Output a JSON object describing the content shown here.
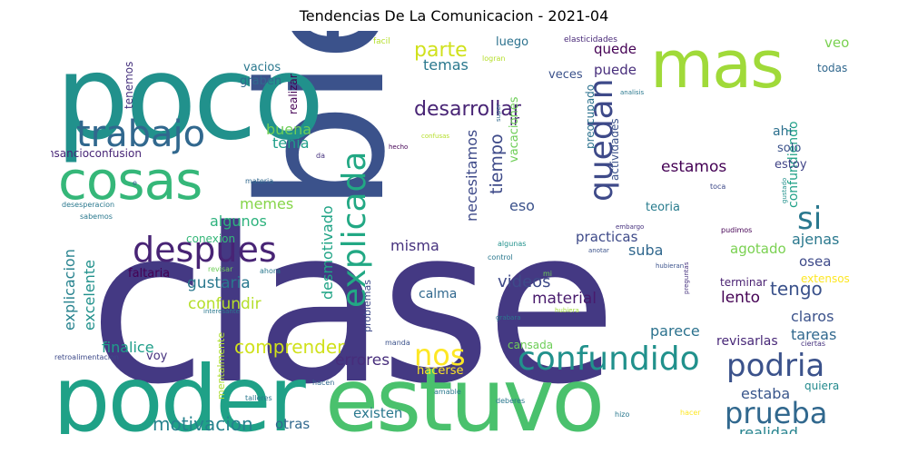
{
  "title": "Tendencias De La Comunicacion - 2021-04",
  "words": [
    {
      "text": "clase",
      "color": "#443983"
    },
    {
      "text": "bien",
      "color": "#3b528b"
    },
    {
      "text": "poco",
      "color": "#21918c"
    },
    {
      "text": "poder",
      "color": "#1fa187"
    },
    {
      "text": "estuvo",
      "color": "#4ac16d"
    },
    {
      "text": "mas",
      "color": "#a0da39"
    },
    {
      "text": "cosas",
      "color": "#35b779"
    },
    {
      "text": "trabajo",
      "color": "#31688e"
    },
    {
      "text": "despues",
      "color": "#482475"
    },
    {
      "text": "explicada",
      "color": "#22a884"
    },
    {
      "text": "si",
      "color": "#2a788e"
    },
    {
      "text": "quedan",
      "color": "#3e4a89"
    },
    {
      "text": "confundido",
      "color": "#21918c"
    },
    {
      "text": "podria",
      "color": "#3b528b"
    },
    {
      "text": "prueba",
      "color": "#31688e"
    },
    {
      "text": "nos",
      "color": "#fde725"
    },
    {
      "text": "parte",
      "color": "#d0e11c"
    },
    {
      "text": "desarrollar",
      "color": "#482475"
    },
    {
      "text": "tiempo",
      "color": "#3e4a89"
    },
    {
      "text": "comprender",
      "color": "#d0e11c"
    },
    {
      "text": "motivacion",
      "color": "#26828e"
    },
    {
      "text": "estamos",
      "color": "#440154"
    },
    {
      "text": "tengo",
      "color": "#3b528b"
    },
    {
      "text": "ajenas",
      "color": "#2a788e"
    },
    {
      "text": "misma",
      "color": "#46327e"
    },
    {
      "text": "material",
      "color": "#481a6c"
    },
    {
      "text": "videos",
      "color": "#3e4a89"
    },
    {
      "text": "lento",
      "color": "#440154"
    },
    {
      "text": "suba",
      "color": "#31688e"
    },
    {
      "text": "gustaria",
      "color": "#2a788e"
    },
    {
      "text": "confundir",
      "color": "#b5de2b"
    },
    {
      "text": "errores",
      "color": "#472d7b"
    },
    {
      "text": "algunos",
      "color": "#2db27d"
    },
    {
      "text": "memes",
      "color": "#86d549"
    },
    {
      "text": "temas",
      "color": "#2a788e"
    },
    {
      "text": "buena",
      "color": "#6ece58"
    },
    {
      "text": "tenia",
      "color": "#1f9e89"
    },
    {
      "text": "necesitamos",
      "color": "#3e4a89"
    },
    {
      "text": "desmotivado",
      "color": "#20a486"
    },
    {
      "text": "explicacion",
      "color": "#26828e"
    },
    {
      "text": "excelente",
      "color": "#21918c"
    },
    {
      "text": "finalice",
      "color": "#1f9e89"
    },
    {
      "text": "confundiendo",
      "color": "#1fa187"
    },
    {
      "text": "realidad",
      "color": "#25838e"
    },
    {
      "text": "tareas",
      "color": "#31688e"
    },
    {
      "text": "claros",
      "color": "#3b528b"
    },
    {
      "text": "estaba",
      "color": "#39568c"
    },
    {
      "text": "quiera",
      "color": "#238a8d"
    },
    {
      "text": "parece",
      "color": "#2c728e"
    },
    {
      "text": "calma",
      "color": "#31688e"
    },
    {
      "text": "practicas",
      "color": "#3e4a89"
    },
    {
      "text": "puede",
      "color": "#472d7b"
    },
    {
      "text": "quede",
      "color": "#440154"
    },
    {
      "text": "veo",
      "color": "#7ad151"
    },
    {
      "text": "luego",
      "color": "#2c728e"
    },
    {
      "text": "eso",
      "color": "#3b528b"
    },
    {
      "text": "ir",
      "color": "#482475"
    },
    {
      "text": "ahi",
      "color": "#2d708e"
    },
    {
      "text": "solo",
      "color": "#3b528b"
    },
    {
      "text": "estoy",
      "color": "#414487"
    },
    {
      "text": "teoria",
      "color": "#287c8e"
    },
    {
      "text": "agotado",
      "color": "#7ad151"
    },
    {
      "text": "osea",
      "color": "#3e4a89"
    },
    {
      "text": "terminar",
      "color": "#481f70"
    },
    {
      "text": "revisarlas",
      "color": "#482878"
    },
    {
      "text": "existen",
      "color": "#2a788e"
    },
    {
      "text": "otras",
      "color": "#31688e"
    },
    {
      "text": "hacerse",
      "color": "#fde725"
    },
    {
      "text": "cansada",
      "color": "#6ece58"
    },
    {
      "text": "voy",
      "color": "#46327e"
    },
    {
      "text": "faltaria",
      "color": "#440154"
    },
    {
      "text": "conexion",
      "color": "#35b779"
    },
    {
      "text": "vacios",
      "color": "#2a788e"
    },
    {
      "text": "graben",
      "color": "#31688e"
    },
    {
      "text": "realizar",
      "color": "#440154"
    },
    {
      "text": "veces",
      "color": "#3b528b"
    },
    {
      "text": "tenemos",
      "color": "#46327e"
    },
    {
      "text": "cansancioconfusion",
      "color": "#482677"
    },
    {
      "text": "vacaciones",
      "color": "#6ece58"
    },
    {
      "text": "actividades",
      "color": "#3b528b"
    },
    {
      "text": "preocupado",
      "color": "#2c728e"
    },
    {
      "text": "todas",
      "color": "#31688e"
    },
    {
      "text": "problemas",
      "color": "#3e4a89"
    },
    {
      "text": "mentalmente",
      "color": "#addc30"
    },
    {
      "text": "extensos",
      "color": "#fde725"
    },
    {
      "text": "agotado2",
      "color": "#7ad151"
    }
  ],
  "small_words": [
    {
      "text": "facil",
      "color": "#b5de2b"
    },
    {
      "text": "elasticidades",
      "color": "#482878"
    },
    {
      "text": "logran",
      "color": "#b5de2b"
    },
    {
      "text": "super",
      "color": "#31688e"
    },
    {
      "text": "analisis",
      "color": "#2a788e"
    },
    {
      "text": "confusas",
      "color": "#b5de2b"
    },
    {
      "text": "hecho",
      "color": "#440154"
    },
    {
      "text": "da",
      "color": "#46327e"
    },
    {
      "text": "materia",
      "color": "#31688e"
    },
    {
      "text": "e",
      "color": "#31688e"
    },
    {
      "text": "desesperacion",
      "color": "#2a788e"
    },
    {
      "text": "sabemos",
      "color": "#2a788e"
    },
    {
      "text": "toca",
      "color": "#3e4a89"
    },
    {
      "text": "gustado",
      "color": "#21918c"
    },
    {
      "text": "embargo",
      "color": "#46327e"
    },
    {
      "text": "pudimos",
      "color": "#440154"
    },
    {
      "text": "algunas",
      "color": "#21918c"
    },
    {
      "text": "anotar",
      "color": "#3b528b"
    },
    {
      "text": "hubieran",
      "color": "#3b528b"
    },
    {
      "text": "control",
      "color": "#2a788e"
    },
    {
      "text": "mi",
      "color": "#6ece58"
    },
    {
      "text": "revisar",
      "color": "#6ece58"
    },
    {
      "text": "ahora",
      "color": "#2a788e"
    },
    {
      "text": "preguntas",
      "color": "#46327e"
    },
    {
      "text": "interesante",
      "color": "#2a788e"
    },
    {
      "text": "hubiera",
      "color": "#a0da39"
    },
    {
      "text": "grabara",
      "color": "#2a788e"
    },
    {
      "text": "retroalimentacion",
      "color": "#3e4a89"
    },
    {
      "text": "manda",
      "color": "#3b528b"
    },
    {
      "text": "ciertas",
      "color": "#46327e"
    },
    {
      "text": "hacen",
      "color": "#31688e"
    },
    {
      "text": "amable",
      "color": "#2a788e"
    },
    {
      "text": "talleres",
      "color": "#2a788e"
    },
    {
      "text": "deberes",
      "color": "#2a788e"
    },
    {
      "text": "hizo",
      "color": "#2a788e"
    },
    {
      "text": "hacer",
      "color": "#fde725"
    }
  ]
}
